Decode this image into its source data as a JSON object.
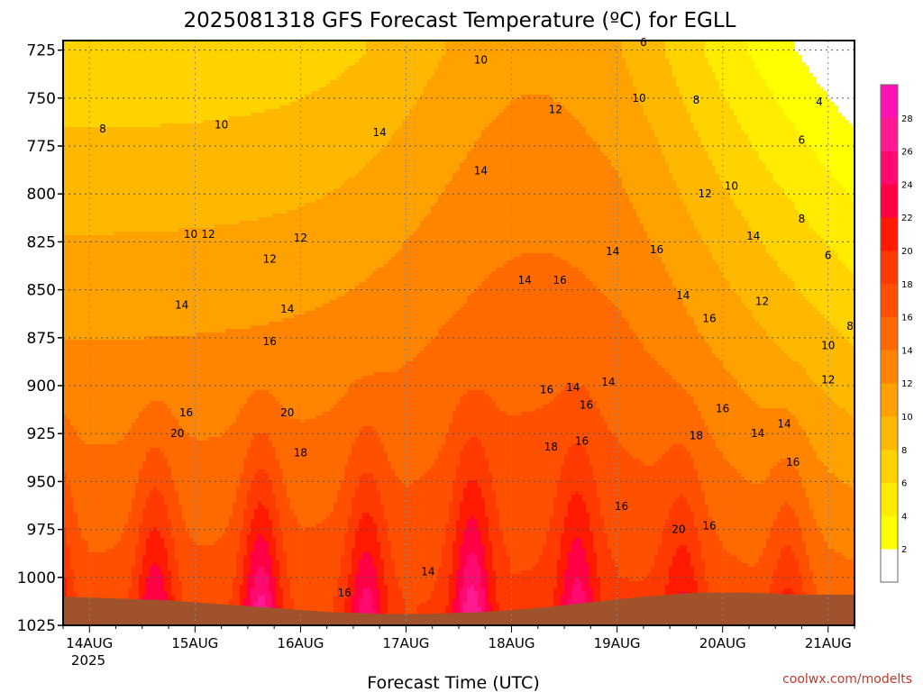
{
  "chart_data": {
    "type": "heatmap",
    "title": "2025081318 GFS Forecast Temperature (ºC) for EGLL",
    "xlabel": "Forecast Time (UTC)",
    "ylabel": "",
    "y_ticks": [
      "725",
      "750",
      "775",
      "800",
      "825",
      "850",
      "875",
      "900",
      "925",
      "950",
      "975",
      "1000",
      "1025"
    ],
    "y_values": [
      725,
      750,
      775,
      800,
      825,
      850,
      875,
      900,
      925,
      950,
      975,
      1000,
      1025
    ],
    "ylim": [
      1025,
      720
    ],
    "x_ticks": [
      "14AUG",
      "15AUG",
      "16AUG",
      "17AUG",
      "18AUG",
      "19AUG",
      "20AUG",
      "21AUG"
    ],
    "x_year_label": "2025",
    "xlim": [
      "2025-08-13T18:00Z",
      "2025-08-21T06:00Z"
    ],
    "grid": true,
    "colorbar": {
      "labels": [
        "2",
        "4",
        "6",
        "8",
        "10",
        "12",
        "14",
        "16",
        "18",
        "20",
        "22",
        "24",
        "26",
        "28"
      ],
      "levels": [
        0,
        2,
        4,
        6,
        8,
        10,
        12,
        14,
        16,
        18,
        20,
        22,
        24,
        26,
        28,
        30
      ],
      "colors": [
        "#ffffff",
        "#ffff00",
        "#ffec00",
        "#ffd200",
        "#ffb800",
        "#ffa200",
        "#ff8400",
        "#ff6a00",
        "#ff5000",
        "#ff3a00",
        "#ff1a00",
        "#ff0044",
        "#ff0a6e",
        "#ff1a92",
        "#ff12b4"
      ]
    },
    "contour_labels": [
      {
        "t": "2025-08-14T03:00Z",
        "p": 766,
        "text": "8"
      },
      {
        "t": "2025-08-15T06:00Z",
        "p": 764,
        "text": "10"
      },
      {
        "t": "2025-08-14T23:00Z",
        "p": 821,
        "text": "10"
      },
      {
        "t": "2025-08-15T03:00Z",
        "p": 821,
        "text": "12"
      },
      {
        "t": "2025-08-15T17:00Z",
        "p": 834,
        "text": "12"
      },
      {
        "t": "2025-08-16T00:00Z",
        "p": 823,
        "text": "12"
      },
      {
        "t": "2025-08-16T18:00Z",
        "p": 768,
        "text": "14"
      },
      {
        "t": "2025-08-17T17:00Z",
        "p": 730,
        "text": "10"
      },
      {
        "t": "2025-08-18T10:00Z",
        "p": 756,
        "text": "12"
      },
      {
        "t": "2025-08-17T17:00Z",
        "p": 788,
        "text": "14"
      },
      {
        "t": "2025-08-19T05:00Z",
        "p": 750,
        "text": "10"
      },
      {
        "t": "2025-08-19T18:00Z",
        "p": 751,
        "text": "8"
      },
      {
        "t": "2025-08-19T06:00Z",
        "p": 721,
        "text": "6"
      },
      {
        "t": "2025-08-20T22:00Z",
        "p": 752,
        "text": "4"
      },
      {
        "t": "2025-08-20T18:00Z",
        "p": 772,
        "text": "6"
      },
      {
        "t": "2025-08-19T20:00Z",
        "p": 800,
        "text": "12"
      },
      {
        "t": "2025-08-20T02:00Z",
        "p": 796,
        "text": "10"
      },
      {
        "t": "2025-08-20T18:00Z",
        "p": 813,
        "text": "8"
      },
      {
        "t": "2025-08-21T00:00Z",
        "p": 832,
        "text": "6"
      },
      {
        "t": "2025-08-14T21:00Z",
        "p": 858,
        "text": "14"
      },
      {
        "t": "2025-08-15T21:00Z",
        "p": 860,
        "text": "14"
      },
      {
        "t": "2025-08-15T17:00Z",
        "p": 877,
        "text": "16"
      },
      {
        "t": "2025-08-18T03:00Z",
        "p": 845,
        "text": "14"
      },
      {
        "t": "2025-08-18T11:00Z",
        "p": 845,
        "text": "16"
      },
      {
        "t": "2025-08-18T23:00Z",
        "p": 830,
        "text": "14"
      },
      {
        "t": "2025-08-19T09:00Z",
        "p": 829,
        "text": "16"
      },
      {
        "t": "2025-08-19T15:00Z",
        "p": 853,
        "text": "14"
      },
      {
        "t": "2025-08-20T07:00Z",
        "p": 822,
        "text": "14"
      },
      {
        "t": "2025-08-19T21:00Z",
        "p": 865,
        "text": "16"
      },
      {
        "t": "2025-08-20T09:00Z",
        "p": 856,
        "text": "12"
      },
      {
        "t": "2025-08-21T05:00Z",
        "p": 869,
        "text": "8"
      },
      {
        "t": "2025-08-21T00:00Z",
        "p": 879,
        "text": "10"
      },
      {
        "t": "2025-08-21T00:00Z",
        "p": 897,
        "text": "12"
      },
      {
        "t": "2025-08-14T22:00Z",
        "p": 914,
        "text": "16"
      },
      {
        "t": "2025-08-14T20:00Z",
        "p": 925,
        "text": "20"
      },
      {
        "t": "2025-08-15T21:00Z",
        "p": 914,
        "text": "20"
      },
      {
        "t": "2025-08-16T00:00Z",
        "p": 935,
        "text": "18"
      },
      {
        "t": "2025-08-18T08:00Z",
        "p": 902,
        "text": "16"
      },
      {
        "t": "2025-08-18T14:00Z",
        "p": 901,
        "text": "14"
      },
      {
        "t": "2025-08-18T22:00Z",
        "p": 898,
        "text": "14"
      },
      {
        "t": "2025-08-18T17:00Z",
        "p": 910,
        "text": "16"
      },
      {
        "t": "2025-08-18T16:00Z",
        "p": 929,
        "text": "16"
      },
      {
        "t": "2025-08-18T09:00Z",
        "p": 932,
        "text": "18"
      },
      {
        "t": "2025-08-20T00:00Z",
        "p": 912,
        "text": "16"
      },
      {
        "t": "2025-08-20T14:00Z",
        "p": 920,
        "text": "14"
      },
      {
        "t": "2025-08-20T08:00Z",
        "p": 925,
        "text": "14"
      },
      {
        "t": "2025-08-20T16:00Z",
        "p": 940,
        "text": "16"
      },
      {
        "t": "2025-08-19T18:00Z",
        "p": 926,
        "text": "18"
      },
      {
        "t": "2025-08-19T01:00Z",
        "p": 963,
        "text": "16"
      },
      {
        "t": "2025-08-19T14:00Z",
        "p": 975,
        "text": "20"
      },
      {
        "t": "2025-08-19T21:00Z",
        "p": 973,
        "text": "16"
      },
      {
        "t": "2025-08-17T05:00Z",
        "p": 997,
        "text": "14"
      },
      {
        "t": "2025-08-16T10:00Z",
        "p": 1008,
        "text": "16"
      }
    ]
  }
}
